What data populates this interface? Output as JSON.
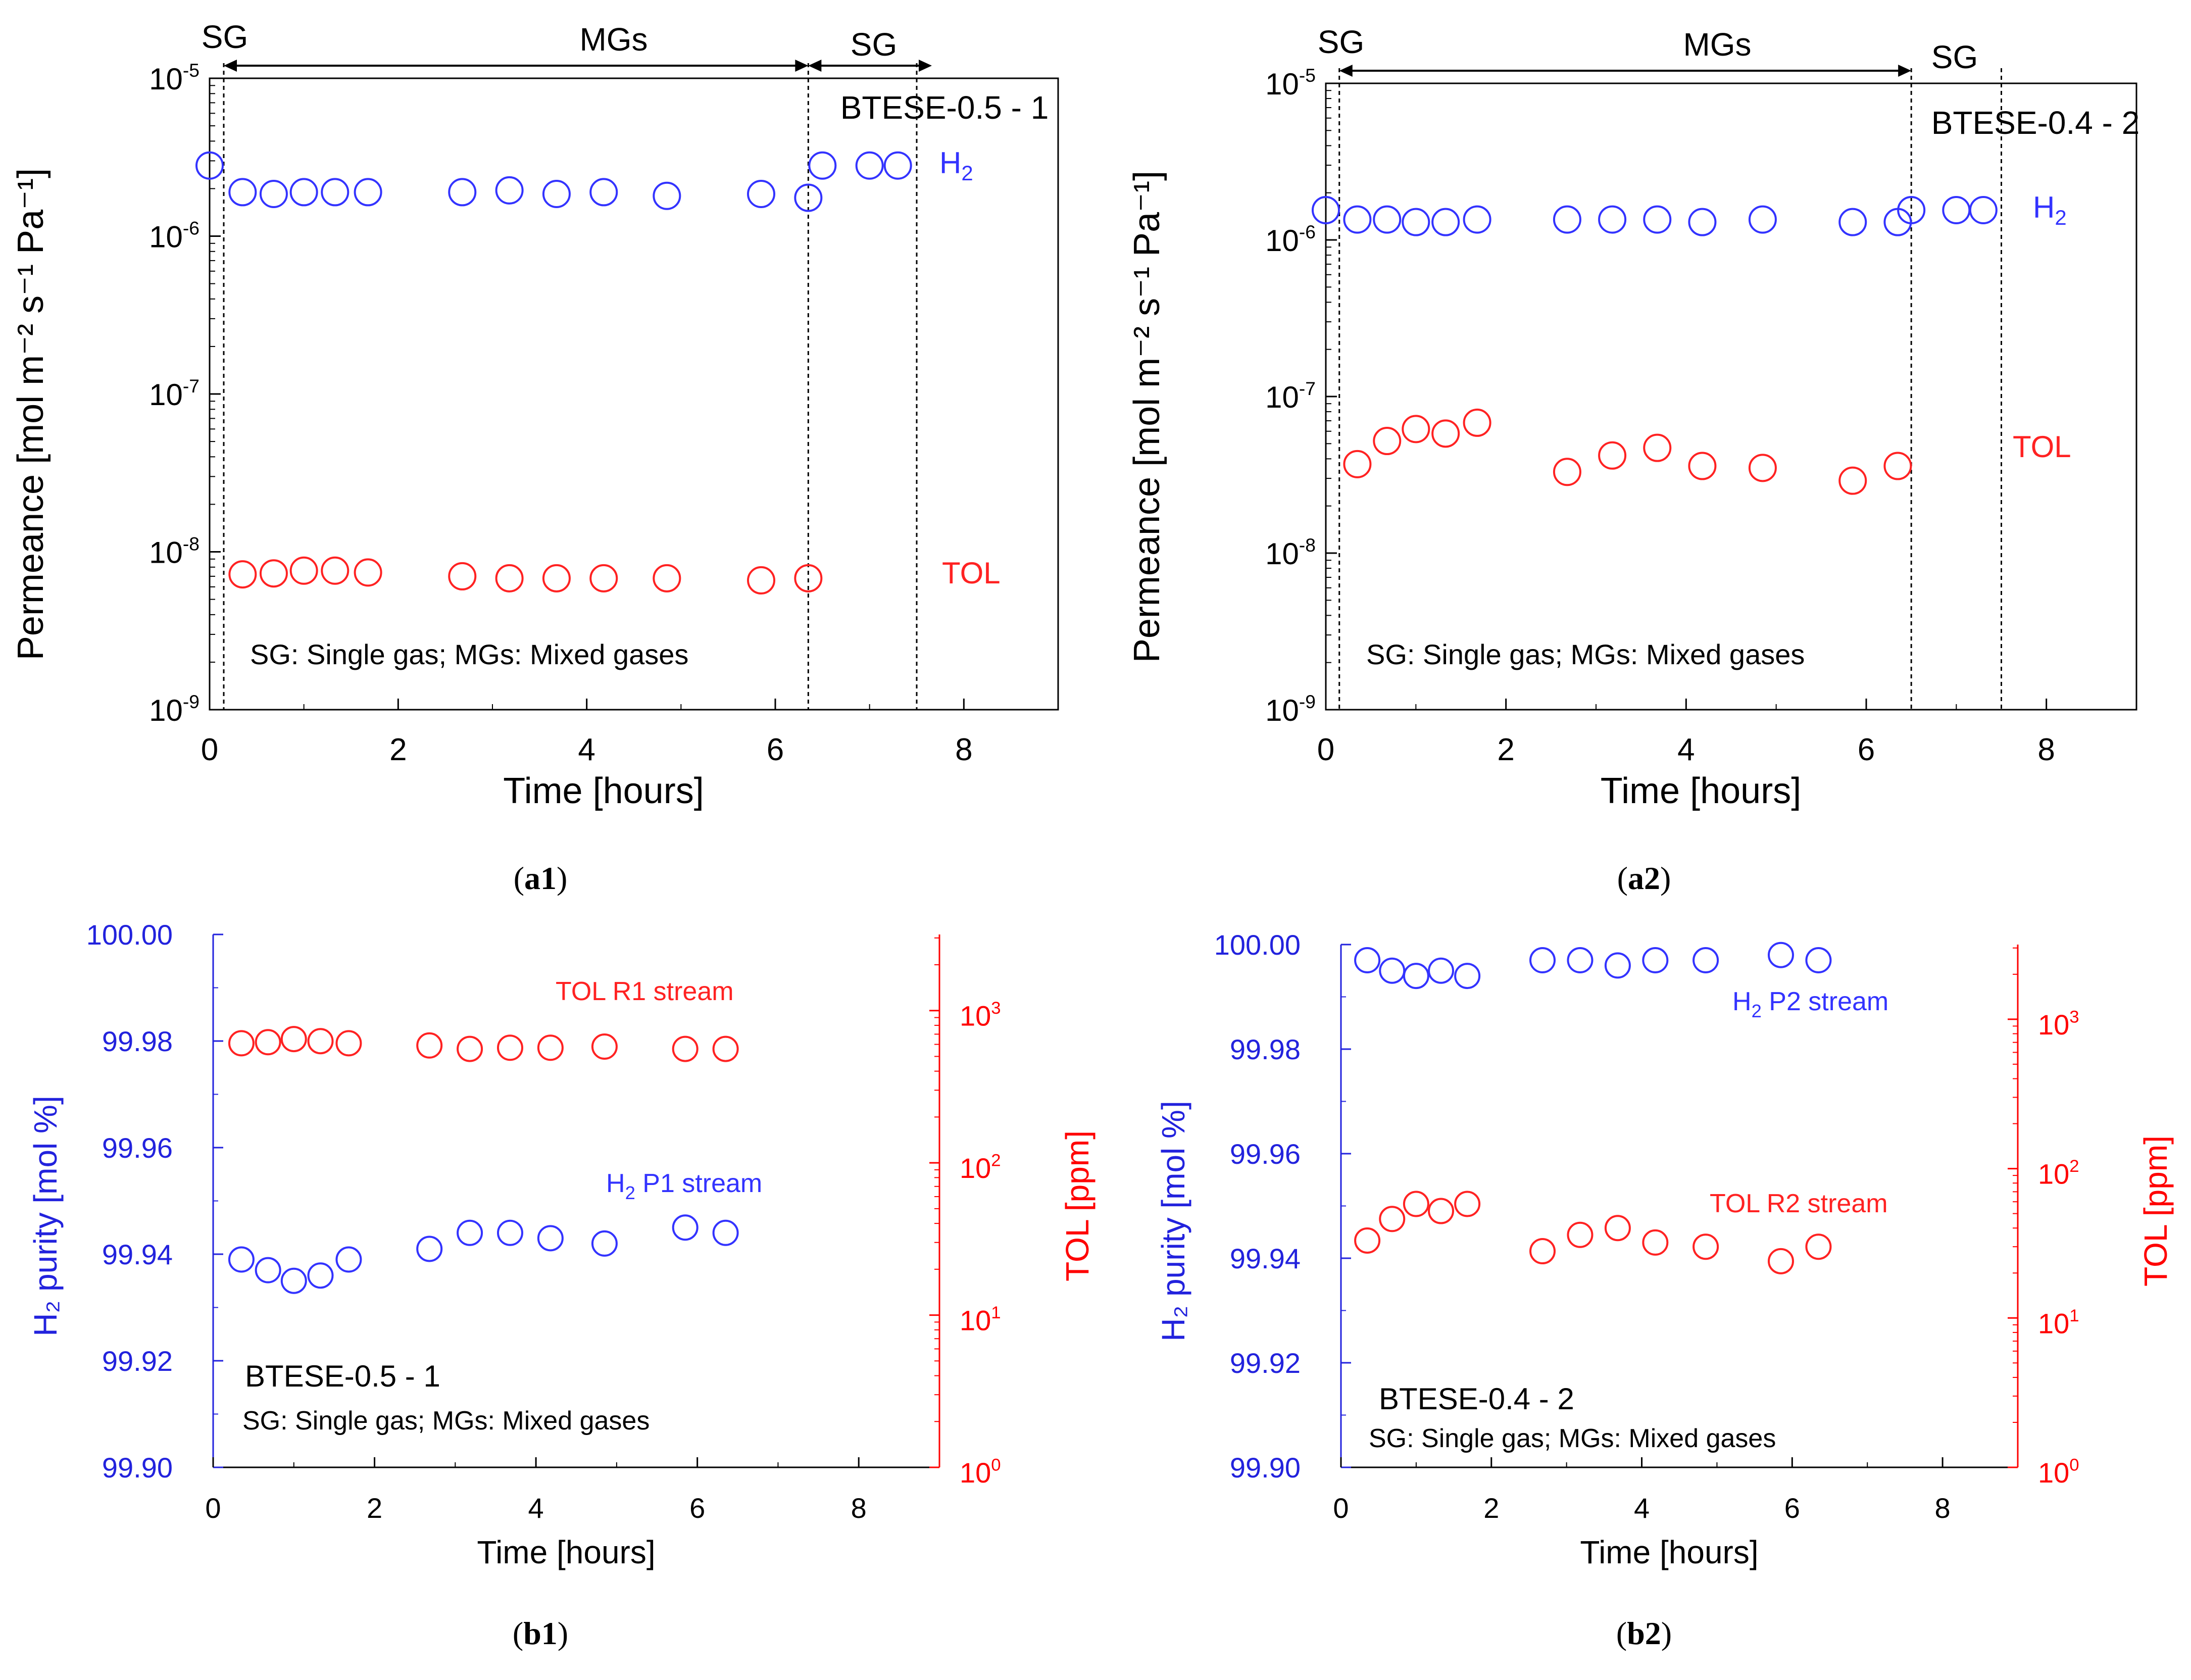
{
  "colors": {
    "h2": "#3333ff",
    "tol": "#ff2222",
    "axis": "#000000",
    "purity_axis": "#2222dd",
    "tol_axis": "#ff0000"
  },
  "chart_data": [
    {
      "id": "a1",
      "type": "scatter",
      "caption": "a1",
      "membrane": "BTESE-0.5 - 1",
      "note": "SG: Single gas; MGs: Mixed gases",
      "xlabel": "Time [hours]",
      "ylabel": "Permeance [mol m⁻² s⁻¹ Pa⁻¹]",
      "xlim": [
        0,
        9
      ],
      "xticks": [
        "0",
        "2",
        "4",
        "6",
        "8"
      ],
      "ylim_log10": [
        -9,
        -5
      ],
      "yscale": "log",
      "yticks": [
        {
          "base": "10",
          "exp": "-5"
        },
        {
          "base": "10",
          "exp": "-6"
        },
        {
          "base": "10",
          "exp": "-7"
        },
        {
          "base": "10",
          "exp": "-8"
        },
        {
          "base": "10",
          "exp": "-9"
        }
      ],
      "regions": [
        {
          "label": "SG",
          "from": 0,
          "to": 0.15
        },
        {
          "label": "MGs",
          "from": 0.15,
          "to": 6.35
        },
        {
          "label": "SG",
          "from": 6.35,
          "to": 7.5
        }
      ],
      "series": [
        {
          "name": "H₂",
          "color": "#3333ff",
          "x": [
            0,
            0.35,
            0.68,
            1.0,
            1.33,
            1.68,
            2.68,
            3.18,
            3.68,
            4.18,
            4.85,
            5.85,
            6.35,
            6.5,
            7.0,
            7.3
          ],
          "y": [
            2.8e-06,
            1.9e-06,
            1.85e-06,
            1.9e-06,
            1.9e-06,
            1.9e-06,
            1.9e-06,
            1.95e-06,
            1.85e-06,
            1.9e-06,
            1.8e-06,
            1.85e-06,
            1.75e-06,
            2.8e-06,
            2.8e-06,
            2.8e-06
          ]
        },
        {
          "name": "TOL",
          "color": "#ff2222",
          "x": [
            0.35,
            0.68,
            1.0,
            1.33,
            1.68,
            2.68,
            3.18,
            3.68,
            4.18,
            4.85,
            5.85,
            6.35
          ],
          "y": [
            7.2e-09,
            7.3e-09,
            7.6e-09,
            7.6e-09,
            7.4e-09,
            7e-09,
            6.8e-09,
            6.8e-09,
            6.8e-09,
            6.8e-09,
            6.6e-09,
            6.8e-09
          ]
        }
      ]
    },
    {
      "id": "a2",
      "type": "scatter",
      "caption": "a2",
      "membrane": "BTESE-0.4 - 2",
      "note": "SG: Single gas; MGs: Mixed gases",
      "xlabel": "Time [hours]",
      "ylabel": "Permeance [mol m⁻² s⁻¹ Pa⁻¹]",
      "xlim": [
        0,
        9
      ],
      "xticks": [
        "0",
        "2",
        "4",
        "6",
        "8"
      ],
      "ylim_log10": [
        -9,
        -5
      ],
      "yscale": "log",
      "yticks": [
        {
          "base": "10",
          "exp": "-5"
        },
        {
          "base": "10",
          "exp": "-6"
        },
        {
          "base": "10",
          "exp": "-7"
        },
        {
          "base": "10",
          "exp": "-8"
        },
        {
          "base": "10",
          "exp": "-9"
        }
      ],
      "regions": [
        {
          "label": "SG",
          "from": 0,
          "to": 0.15
        },
        {
          "label": "MGs",
          "from": 0.15,
          "to": 6.5
        },
        {
          "label": "SG",
          "from": 6.5,
          "to": 7.5
        }
      ],
      "series": [
        {
          "name": "H₂",
          "color": "#3333ff",
          "x": [
            0,
            0.35,
            0.68,
            1.0,
            1.33,
            1.68,
            2.68,
            3.18,
            3.68,
            4.18,
            4.85,
            5.85,
            6.35,
            6.5,
            7.0,
            7.3
          ],
          "y": [
            1.55e-06,
            1.35e-06,
            1.35e-06,
            1.3e-06,
            1.3e-06,
            1.35e-06,
            1.35e-06,
            1.35e-06,
            1.35e-06,
            1.3e-06,
            1.35e-06,
            1.3e-06,
            1.3e-06,
            1.55e-06,
            1.55e-06,
            1.55e-06
          ]
        },
        {
          "name": "TOL",
          "color": "#ff2222",
          "x": [
            0.35,
            0.68,
            1.0,
            1.33,
            1.68,
            2.68,
            3.18,
            3.68,
            4.18,
            4.85,
            5.85,
            6.35
          ],
          "y": [
            3.7e-08,
            5.2e-08,
            6.2e-08,
            5.8e-08,
            6.8e-08,
            3.3e-08,
            4.2e-08,
            4.7e-08,
            3.6e-08,
            3.5e-08,
            2.9e-08,
            3.6e-08
          ]
        }
      ]
    },
    {
      "id": "b1",
      "type": "scatter",
      "caption": "b1",
      "membrane": "BTESE-0.5 - 1",
      "note": "SG: Single gas; MGs: Mixed gases",
      "xlabel": "Time [hours]",
      "ylabel_left": "H₂ purity [mol %]",
      "ylabel_right": "TOL  [ppm]",
      "xlim": [
        0,
        9
      ],
      "xticks": [
        "0",
        "2",
        "4",
        "6",
        "8"
      ],
      "ylim_left": [
        99.9,
        100.0
      ],
      "yticks_left": [
        "100.00",
        "99.98",
        "99.96",
        "99.94",
        "99.92",
        "99.90"
      ],
      "ylim_right_log10": [
        0,
        3.5
      ],
      "yticks_right": [
        {
          "base": "10",
          "exp": "3"
        },
        {
          "base": "10",
          "exp": "2"
        },
        {
          "base": "10",
          "exp": "1"
        },
        {
          "base": "10",
          "exp": "0"
        }
      ],
      "series": [
        {
          "name": "H₂ P1 stream",
          "axis": "left",
          "color": "#3333ff",
          "x": [
            0.35,
            0.68,
            1.0,
            1.33,
            1.68,
            2.68,
            3.18,
            3.68,
            4.18,
            4.85,
            5.85,
            6.35
          ],
          "y": [
            99.939,
            99.937,
            99.935,
            99.936,
            99.939,
            99.941,
            99.944,
            99.944,
            99.943,
            99.942,
            99.945,
            99.944
          ]
        },
        {
          "name": "TOL  R1 stream",
          "axis": "right",
          "color": "#ff2222",
          "x": [
            0.35,
            0.68,
            1.0,
            1.33,
            1.68,
            2.68,
            3.18,
            3.68,
            4.18,
            4.85,
            5.85,
            6.35
          ],
          "y": [
            610,
            620,
            650,
            630,
            610,
            590,
            560,
            570,
            570,
            580,
            560,
            560
          ]
        }
      ]
    },
    {
      "id": "b2",
      "type": "scatter",
      "caption": "b2",
      "membrane": "BTESE-0.4 - 2",
      "note": "SG: Single gas; MGs: Mixed gases",
      "xlabel": "Time [hours]",
      "ylabel_left": "H₂ purity [mol %]",
      "ylabel_right": "TOL  [ppm]",
      "xlim": [
        0,
        9
      ],
      "xticks": [
        "0",
        "2",
        "4",
        "6",
        "8"
      ],
      "ylim_left": [
        99.9,
        100.0
      ],
      "yticks_left": [
        "100.00",
        "99.98",
        "99.96",
        "99.94",
        "99.92",
        "99.90"
      ],
      "ylim_right_log10": [
        0,
        3.5
      ],
      "yticks_right": [
        {
          "base": "10",
          "exp": "3"
        },
        {
          "base": "10",
          "exp": "2"
        },
        {
          "base": "10",
          "exp": "1"
        },
        {
          "base": "10",
          "exp": "0"
        }
      ],
      "series": [
        {
          "name": "H₂ P2 stream",
          "axis": "left",
          "color": "#3333ff",
          "x": [
            0.35,
            0.68,
            1.0,
            1.33,
            1.68,
            2.68,
            3.18,
            3.68,
            4.18,
            4.85,
            5.85,
            6.35
          ],
          "y": [
            99.997,
            99.995,
            99.994,
            99.995,
            99.994,
            99.997,
            99.997,
            99.996,
            99.997,
            99.997,
            99.998,
            99.997
          ]
        },
        {
          "name": "TOL R2 stream",
          "axis": "right",
          "color": "#ff2222",
          "x": [
            0.35,
            0.68,
            1.0,
            1.33,
            1.68,
            2.68,
            3.18,
            3.68,
            4.18,
            4.85,
            5.85,
            6.35
          ],
          "y": [
            33,
            46,
            58,
            52,
            58,
            28,
            36,
            40,
            32,
            30,
            24,
            30
          ]
        }
      ]
    }
  ]
}
